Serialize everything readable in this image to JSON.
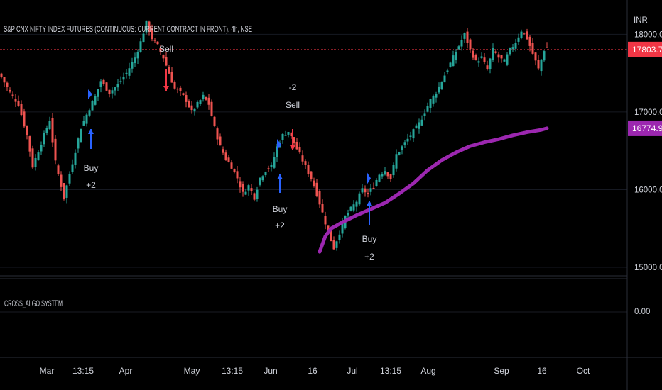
{
  "header": {
    "title": "S&P CNX NIFTY INDEX FUTURES (CONTINUOUS: CURRENT CONTRACT IN FRONT), 4h, NSE",
    "currency": "INR"
  },
  "indicator": {
    "name": "CROSS_ALGO SYSTEM",
    "value_label": "0.00"
  },
  "price_badges": {
    "last": "17803.70",
    "ma": "16774.90"
  },
  "colors": {
    "background": "#000000",
    "up_candle": "#26a69a",
    "down_candle": "#ef5350",
    "ma_line": "#9c27b0",
    "buy_arrow": "#2962ff",
    "sell_arrow": "#f23645",
    "last_price_badge": "#f23645",
    "ma_badge": "#9c27b0",
    "text": "#d1d4dc"
  },
  "signals": [
    {
      "type": "buy",
      "lines": [
        "Buy",
        "+2"
      ]
    },
    {
      "type": "sell",
      "lines": [
        "",
        "Sell"
      ]
    },
    {
      "type": "sell",
      "lines": [
        "-2",
        "Sell"
      ]
    },
    {
      "type": "buy",
      "lines": [
        "Buy",
        "+2"
      ]
    },
    {
      "type": "buy",
      "lines": [
        "Buy",
        "+2"
      ]
    }
  ],
  "chart_data": {
    "type": "candlestick",
    "ylim": [
      14900,
      18350
    ],
    "y_ticks": [
      {
        "value": 15000,
        "label": "15000.00"
      },
      {
        "value": 16000,
        "label": "16000.00"
      },
      {
        "value": 17000,
        "label": "17000.00"
      },
      {
        "value": 18000,
        "label": "18000.00"
      }
    ],
    "x_ticks": [
      "Mar",
      "13:15",
      "Apr",
      "May",
      "13:15",
      "Jun",
      "16",
      "Jul",
      "13:15",
      "Aug",
      "Sep",
      "16",
      "Oct"
    ],
    "last_price": 17803.7,
    "series": [
      {
        "name": "price",
        "anchors": [
          [
            0,
            17450
          ],
          [
            3,
            17250
          ],
          [
            6,
            17100
          ],
          [
            9,
            16700
          ],
          [
            11,
            16300
          ],
          [
            14,
            16600
          ],
          [
            17,
            16900
          ],
          [
            19,
            16350
          ],
          [
            22,
            15900
          ],
          [
            24,
            16200
          ],
          [
            26,
            16500
          ],
          [
            28,
            16800
          ],
          [
            31,
            17050
          ],
          [
            33,
            17200
          ],
          [
            35,
            17400
          ],
          [
            38,
            17250
          ],
          [
            41,
            17350
          ],
          [
            44,
            17500
          ],
          [
            47,
            17700
          ],
          [
            49,
            17900
          ],
          [
            51,
            18150
          ],
          [
            53,
            17950
          ],
          [
            55,
            17850
          ],
          [
            57,
            17700
          ],
          [
            59,
            17500
          ],
          [
            61,
            17300
          ],
          [
            63,
            17250
          ],
          [
            65,
            17150
          ],
          [
            67,
            17000
          ],
          [
            69,
            17100
          ],
          [
            71,
            17200
          ],
          [
            73,
            17100
          ],
          [
            75,
            16800
          ],
          [
            77,
            16550
          ],
          [
            79,
            16400
          ],
          [
            81,
            16300
          ],
          [
            83,
            16150
          ],
          [
            85,
            15950
          ],
          [
            87,
            16050
          ],
          [
            89,
            15900
          ],
          [
            91,
            16150
          ],
          [
            93,
            16250
          ],
          [
            95,
            16300
          ],
          [
            97,
            16550
          ],
          [
            99,
            16700
          ],
          [
            101,
            16750
          ],
          [
            103,
            16600
          ],
          [
            105,
            16450
          ],
          [
            107,
            16300
          ],
          [
            109,
            16150
          ],
          [
            111,
            15950
          ],
          [
            113,
            15700
          ],
          [
            115,
            15450
          ],
          [
            117,
            15250
          ],
          [
            119,
            15450
          ],
          [
            121,
            15650
          ],
          [
            123,
            15750
          ],
          [
            125,
            15850
          ],
          [
            127,
            16000
          ],
          [
            129,
            15950
          ],
          [
            131,
            16050
          ],
          [
            133,
            16200
          ],
          [
            135,
            16250
          ],
          [
            137,
            16150
          ],
          [
            139,
            16450
          ],
          [
            141,
            16550
          ],
          [
            143,
            16650
          ],
          [
            145,
            16750
          ],
          [
            147,
            16850
          ],
          [
            149,
            17000
          ],
          [
            151,
            17150
          ],
          [
            153,
            17250
          ],
          [
            155,
            17400
          ],
          [
            157,
            17550
          ],
          [
            159,
            17700
          ],
          [
            161,
            17850
          ],
          [
            163,
            18000
          ],
          [
            165,
            17800
          ],
          [
            167,
            17650
          ],
          [
            169,
            17700
          ],
          [
            171,
            17550
          ],
          [
            173,
            17800
          ],
          [
            175,
            17700
          ],
          [
            177,
            17650
          ],
          [
            179,
            17800
          ],
          [
            181,
            17900
          ],
          [
            183,
            18050
          ],
          [
            185,
            17950
          ],
          [
            187,
            17750
          ],
          [
            189,
            17550
          ],
          [
            191,
            17800
          ],
          [
            192,
            17820
          ]
        ]
      },
      {
        "name": "moving_average",
        "points": [
          [
            112,
            15200
          ],
          [
            114,
            15400
          ],
          [
            116,
            15500
          ],
          [
            120,
            15580
          ],
          [
            125,
            15670
          ],
          [
            130,
            15750
          ],
          [
            135,
            15830
          ],
          [
            140,
            15950
          ],
          [
            145,
            16080
          ],
          [
            150,
            16250
          ],
          [
            155,
            16380
          ],
          [
            160,
            16480
          ],
          [
            165,
            16560
          ],
          [
            170,
            16610
          ],
          [
            175,
            16650
          ],
          [
            180,
            16700
          ],
          [
            185,
            16740
          ],
          [
            190,
            16770
          ],
          [
            192,
            16790
          ]
        ]
      }
    ]
  }
}
